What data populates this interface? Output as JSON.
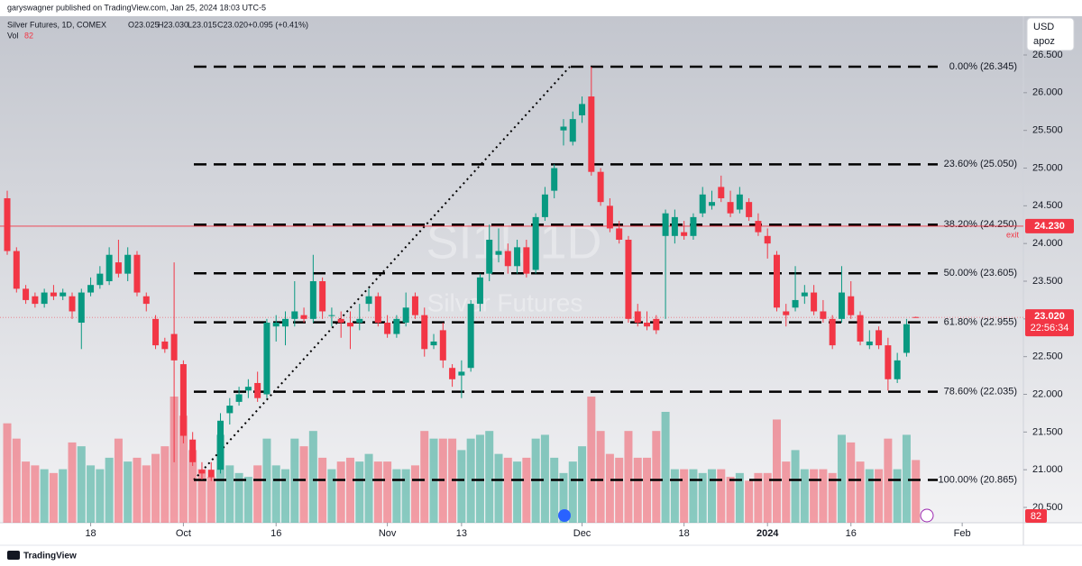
{
  "header": {
    "publisher": "garyswagner published on TradingView.com, Jan 25, 2024 18:03 UTC-5"
  },
  "legend": {
    "symbol": "Silver Futures, 1D, COMEX",
    "ohlc": [
      "O23.025",
      "H23.030",
      "L23.015",
      "C23.020"
    ],
    "change": "+0.095 (+0.41%)",
    "volume_label": "Vol"
  },
  "currency": {
    "unit": "USD",
    "user": "apoz"
  },
  "watermark": {
    "symbol": "SI1!, 1D",
    "name": "Silver Futures"
  },
  "chart_data": {
    "type": "candlestick",
    "open": [
      24.6,
      23.9,
      23.4,
      23.3,
      23.2,
      23.35,
      23.3,
      23.3,
      22.95,
      23.35,
      23.45,
      23.5,
      23.75,
      23.6,
      23.85,
      23.3,
      23.0,
      22.7,
      22.8,
      22.4,
      21.4,
      21.0,
      21.0,
      21.0,
      21.75,
      21.9,
      22.05,
      22.15,
      22.0,
      22.9,
      22.9,
      23.0,
      23.05,
      23.0,
      23.5,
      23.05,
      23.0,
      22.95,
      22.95,
      23.2,
      23.3,
      22.95,
      22.8,
      22.95,
      23.3,
      23.05,
      22.65,
      22.85,
      22.35,
      22.25,
      22.35,
      23.2,
      23.6,
      23.85,
      23.9,
      23.7,
      23.95,
      23.65,
      24.35,
      24.7,
      25.5,
      25.35,
      25.7,
      25.95,
      24.95,
      24.5,
      24.2,
      24.05,
      23.1,
      22.95,
      23.0,
      24.1,
      24.1,
      24.15,
      24.1,
      24.4,
      24.5,
      24.75,
      24.55,
      24.45,
      24.55,
      24.3,
      24.1,
      23.85,
      23.1,
      23.15,
      23.3,
      23.35,
      23.1,
      23.0,
      23.0,
      23.3,
      23.05,
      22.65,
      22.85,
      22.65,
      22.2,
      22.55,
      23.025
    ],
    "high": [
      24.7,
      23.95,
      23.45,
      23.35,
      23.4,
      23.45,
      23.4,
      23.35,
      23.4,
      23.55,
      23.7,
      23.95,
      24.05,
      23.95,
      23.9,
      23.35,
      23.05,
      22.75,
      23.75,
      22.45,
      21.5,
      21.1,
      21.1,
      21.75,
      21.95,
      22.1,
      22.2,
      22.3,
      23.0,
      23.05,
      23.1,
      23.5,
      23.15,
      23.85,
      23.55,
      23.15,
      23.1,
      23.1,
      23.2,
      23.4,
      23.35,
      23.05,
      23.05,
      23.35,
      23.35,
      23.15,
      22.8,
      22.95,
      22.4,
      22.45,
      23.25,
      23.6,
      24.25,
      24.2,
      24.0,
      24.05,
      24.05,
      24.4,
      24.75,
      25.05,
      25.65,
      25.75,
      25.95,
      26.345,
      25.0,
      24.6,
      24.3,
      24.1,
      23.2,
      23.1,
      23.05,
      24.45,
      24.45,
      24.3,
      24.4,
      24.75,
      24.7,
      24.9,
      24.7,
      24.75,
      24.6,
      24.4,
      24.2,
      23.9,
      23.2,
      23.7,
      23.45,
      23.45,
      23.25,
      23.05,
      23.7,
      23.5,
      23.1,
      22.85,
      22.9,
      22.75,
      22.55,
      23.0,
      23.03
    ],
    "low": [
      23.85,
      23.35,
      23.2,
      23.15,
      23.15,
      23.25,
      23.25,
      23.0,
      22.6,
      23.3,
      23.4,
      23.45,
      23.55,
      23.5,
      23.3,
      23.1,
      22.6,
      22.55,
      21.1,
      21.35,
      21.05,
      20.87,
      20.85,
      20.95,
      21.6,
      21.85,
      21.95,
      21.9,
      21.95,
      22.7,
      22.65,
      22.9,
      22.95,
      22.95,
      23.0,
      22.9,
      22.75,
      22.6,
      22.85,
      23.1,
      22.9,
      22.75,
      22.75,
      22.9,
      23.0,
      22.5,
      22.6,
      22.35,
      22.1,
      21.95,
      22.3,
      23.1,
      23.5,
      23.75,
      23.6,
      23.6,
      23.55,
      23.6,
      24.3,
      24.6,
      25.3,
      25.3,
      25.6,
      24.9,
      24.5,
      24.15,
      24.0,
      22.95,
      22.9,
      22.85,
      22.8,
      23.0,
      24.0,
      24.05,
      24.05,
      24.35,
      24.45,
      24.55,
      24.35,
      24.4,
      24.3,
      24.1,
      23.8,
      23.1,
      22.9,
      23.1,
      23.2,
      23.05,
      22.95,
      22.6,
      22.95,
      23.0,
      22.65,
      22.6,
      22.6,
      22.05,
      22.15,
      22.5,
      23.015
    ],
    "close": [
      23.9,
      23.4,
      23.25,
      23.2,
      23.35,
      23.3,
      23.35,
      23.1,
      23.35,
      23.45,
      23.6,
      23.85,
      23.6,
      23.85,
      23.35,
      23.2,
      22.65,
      22.6,
      22.45,
      21.45,
      21.1,
      20.95,
      20.9,
      21.65,
      21.85,
      22.0,
      22.1,
      21.95,
      22.95,
      22.95,
      23.0,
      23.1,
      23.0,
      23.5,
      23.1,
      23.05,
      22.95,
      22.9,
      23.0,
      23.3,
      22.95,
      22.8,
      23.0,
      23.15,
      23.05,
      22.6,
      22.7,
      22.45,
      22.2,
      22.3,
      23.2,
      23.55,
      24.05,
      23.9,
      23.7,
      23.95,
      23.6,
      24.35,
      24.65,
      25.0,
      25.55,
      25.65,
      25.85,
      24.95,
      24.55,
      24.2,
      24.05,
      23.0,
      22.95,
      22.9,
      22.85,
      24.4,
      24.35,
      24.1,
      24.35,
      24.65,
      24.55,
      24.6,
      24.4,
      24.65,
      24.35,
      24.15,
      24.0,
      23.15,
      23.05,
      23.25,
      23.35,
      23.1,
      23.0,
      22.65,
      23.35,
      23.05,
      22.7,
      22.7,
      22.65,
      22.2,
      22.45,
      22.93,
      23.02
    ],
    "volume": [
      130,
      110,
      80,
      75,
      70,
      65,
      70,
      105,
      100,
      75,
      70,
      85,
      110,
      80,
      85,
      75,
      90,
      100,
      165,
      140,
      95,
      70,
      60,
      115,
      75,
      65,
      60,
      75,
      110,
      75,
      70,
      110,
      100,
      120,
      85,
      70,
      80,
      85,
      80,
      90,
      80,
      80,
      70,
      70,
      75,
      120,
      110,
      110,
      110,
      95,
      110,
      115,
      120,
      90,
      85,
      80,
      85,
      110,
      115,
      85,
      65,
      80,
      100,
      165,
      120,
      90,
      85,
      120,
      85,
      85,
      120,
      145,
      70,
      70,
      70,
      65,
      70,
      70,
      60,
      65,
      55,
      65,
      65,
      135,
      80,
      95,
      70,
      70,
      70,
      65,
      115,
      105,
      80,
      70,
      70,
      110,
      70,
      115,
      82
    ],
    "colors": {
      "up": "#089981",
      "down": "#f23645"
    },
    "ylim": [
      20.297,
      27.014
    ],
    "yticks": [
      {
        "value": 20.5,
        "label": "20.500"
      },
      {
        "value": 21,
        "label": "21.000"
      },
      {
        "value": 21.5,
        "label": "21.500"
      },
      {
        "value": 22,
        "label": "22.000"
      },
      {
        "value": 22.5,
        "label": "22.500"
      },
      {
        "value": 23,
        "label": "23.000"
      },
      {
        "value": 23.5,
        "label": "23.500"
      },
      {
        "value": 24,
        "label": "24.000"
      },
      {
        "value": 24.5,
        "label": "24.500"
      },
      {
        "value": 25,
        "label": "25.000"
      },
      {
        "value": 25.5,
        "label": "25.500"
      },
      {
        "value": 26,
        "label": "26.000"
      },
      {
        "value": 26.5,
        "label": "26.500"
      }
    ],
    "xlim": [
      -0.78,
      109.6
    ],
    "xticks": [
      {
        "value": 9,
        "label": "18"
      },
      {
        "value": 19,
        "label": "Oct"
      },
      {
        "value": 29,
        "label": "16"
      },
      {
        "value": 41,
        "label": "Nov"
      },
      {
        "value": 49,
        "label": "13"
      },
      {
        "value": 62,
        "label": "Dec"
      },
      {
        "value": 73,
        "label": "18"
      },
      {
        "value": 82,
        "label": "2024"
      },
      {
        "value": 91,
        "label": "16"
      },
      {
        "value": 103,
        "label": "Feb"
      }
    ],
    "fib_levels": [
      {
        "value": 26.345,
        "label": "0.00% (26.345)"
      },
      {
        "value": 25.05,
        "label": "23.60% (25.050)"
      },
      {
        "value": 24.25,
        "label": "38.20% (24.250)"
      },
      {
        "value": 23.605,
        "label": "50.00% (23.605)"
      },
      {
        "value": 22.955,
        "label": "61.80% (22.955)"
      },
      {
        "value": 22.035,
        "label": "78.60% (22.035)"
      },
      {
        "value": 20.865,
        "label": "100.00% (20.865)"
      }
    ],
    "exit_line": {
      "value": 24.23,
      "label": "24.230",
      "text": "exit"
    },
    "last_price": {
      "value": 23.02,
      "label": "23.020"
    },
    "countdown": "22:56:34"
  },
  "footer": {
    "brand": "TradingView"
  }
}
